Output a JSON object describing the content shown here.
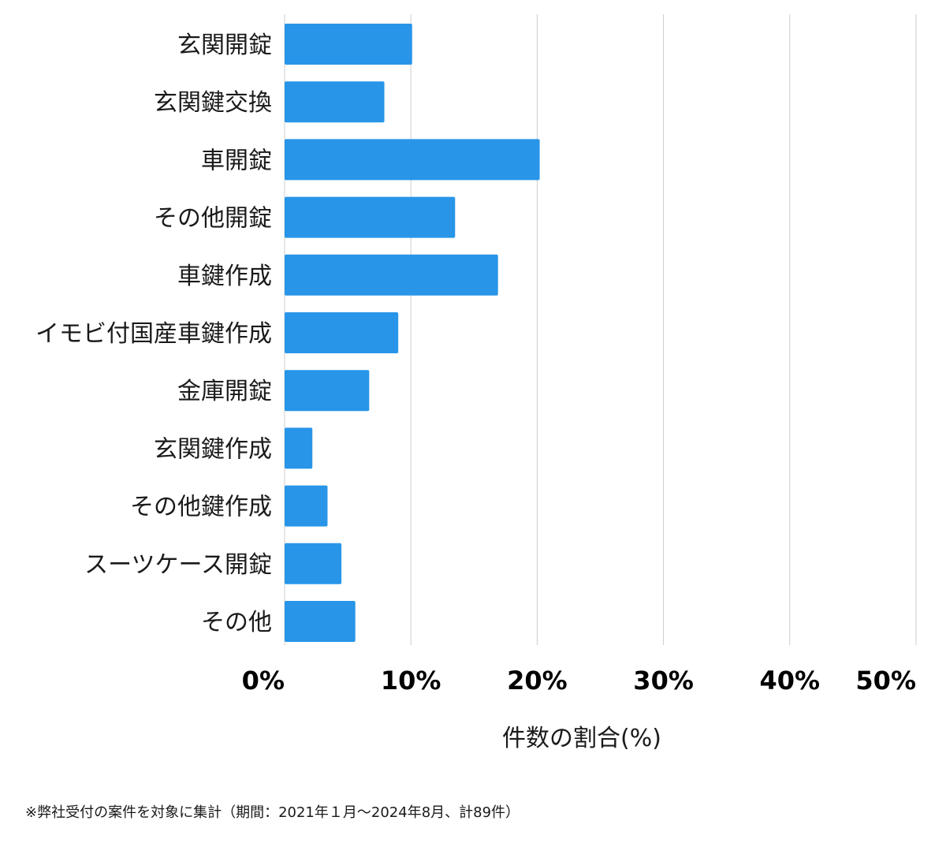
{
  "chart_data": {
    "type": "bar",
    "orientation": "horizontal",
    "categories": [
      "玄関開錠",
      "玄関鍵交換",
      "車開錠",
      "その他開錠",
      "車鍵作成",
      "イモビ付国産車鍵作成",
      "金庫開錠",
      "玄関鍵作成",
      "その他鍵作成",
      "スーツケース開錠",
      "その他"
    ],
    "values": [
      10.1,
      7.9,
      20.2,
      13.5,
      16.9,
      9.0,
      6.7,
      2.2,
      3.4,
      4.5,
      5.6
    ],
    "xlabel": "件数の割合(%)",
    "xlim": [
      0,
      50
    ],
    "ticks": [
      0,
      10,
      20,
      30,
      40,
      50
    ],
    "tick_labels": [
      "0%",
      "10%",
      "20%",
      "30%",
      "40%",
      "50%"
    ],
    "grid": true,
    "bar_color": "#2895e8",
    "grid_color": "#cccccc"
  },
  "footnote": "※弊社受付の案件を対象に集計（期間：2021年１月〜2024年8月、計89件）"
}
